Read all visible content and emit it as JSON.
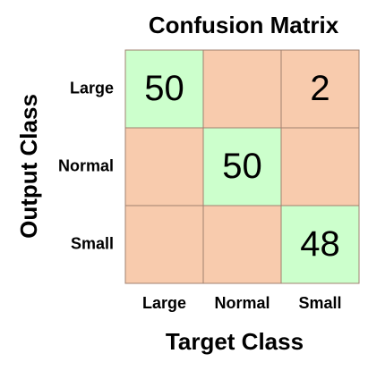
{
  "chart_data": {
    "type": "confusion_matrix",
    "title": "Confusion Matrix",
    "x_label": "Target Class",
    "y_label": "Output Class",
    "x_categories": [
      "Large",
      "Normal",
      "Small"
    ],
    "y_categories": [
      "Large",
      "Normal",
      "Small"
    ],
    "values": [
      [
        50,
        null,
        2
      ],
      [
        null,
        50,
        null
      ],
      [
        null,
        null,
        48
      ]
    ],
    "diagonal_color": "#ccffcc",
    "off_diagonal_color": "#f8cbad"
  }
}
